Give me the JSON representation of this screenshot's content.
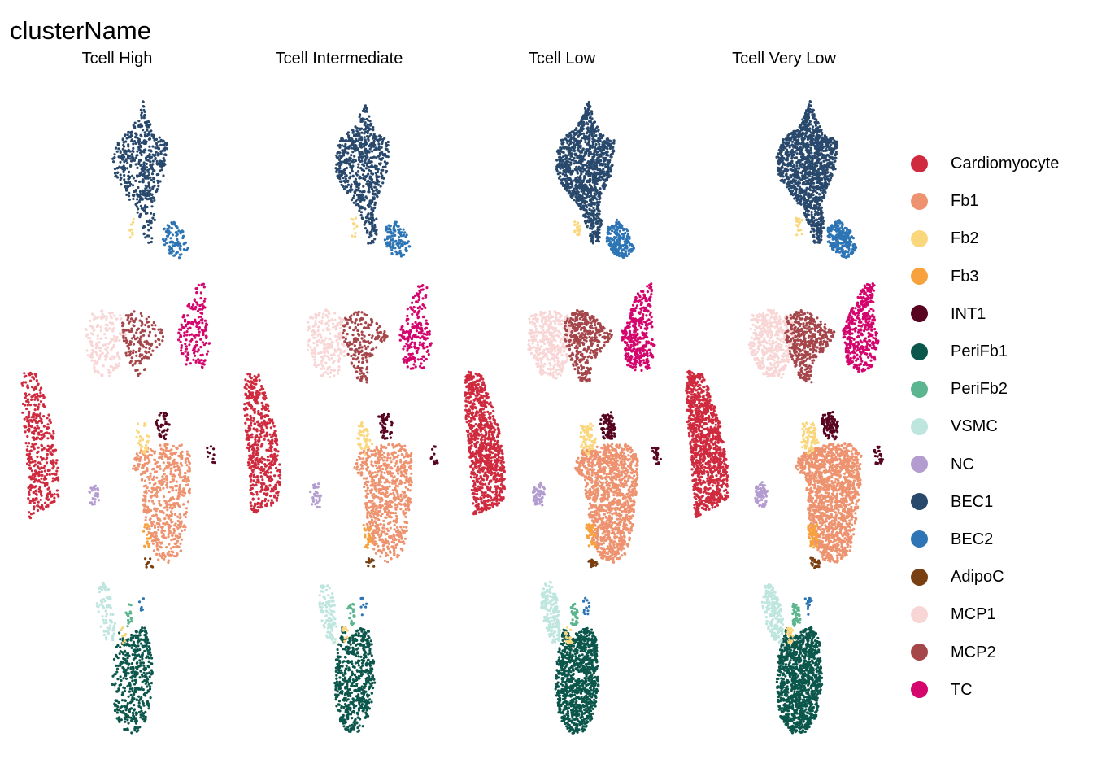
{
  "chart_data": {
    "type": "scatter",
    "title": "clusterName",
    "facets": [
      "Tcell High",
      "Tcell Intermediate",
      "Tcell Low",
      "Tcell Very Low"
    ],
    "facet_density": [
      0.55,
      0.7,
      1.25,
      1.45
    ],
    "axes_visible": false,
    "grid": false,
    "legend_position": "right",
    "legend": [
      {
        "name": "Cardiomyocyte",
        "color": "#CF2A3E"
      },
      {
        "name": "Fb1",
        "color": "#EE9370"
      },
      {
        "name": "Fb2",
        "color": "#FAD77D"
      },
      {
        "name": "Fb3",
        "color": "#F8A23E"
      },
      {
        "name": "INT1",
        "color": "#580420"
      },
      {
        "name": "PeriFb1",
        "color": "#0C574C"
      },
      {
        "name": "PeriFb2",
        "color": "#5BB58F"
      },
      {
        "name": "VSMC",
        "color": "#BEE6DE"
      },
      {
        "name": "NC",
        "color": "#B39CCF"
      },
      {
        "name": "BEC1",
        "color": "#28486C"
      },
      {
        "name": "BEC2",
        "color": "#2D75B5"
      },
      {
        "name": "AdipoC",
        "color": "#7A3F10"
      },
      {
        "name": "MCP1",
        "color": "#F8D6D6"
      },
      {
        "name": "MCP2",
        "color": "#A5464B"
      },
      {
        "name": "TC",
        "color": "#D4056D"
      }
    ]
  }
}
